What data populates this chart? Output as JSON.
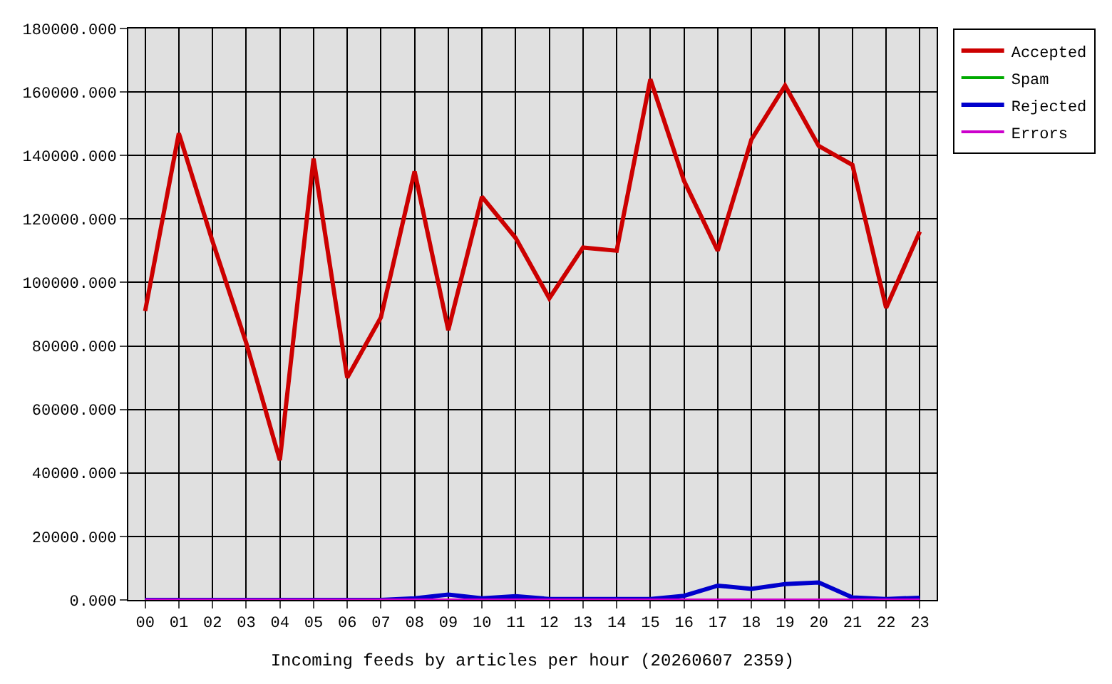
{
  "chart_data": {
    "type": "line",
    "xlabel": "Incoming feeds by articles per hour (20260607 2359)",
    "categories": [
      "00",
      "01",
      "02",
      "03",
      "04",
      "05",
      "06",
      "07",
      "08",
      "09",
      "10",
      "11",
      "12",
      "13",
      "14",
      "15",
      "16",
      "17",
      "18",
      "19",
      "20",
      "21",
      "22",
      "23"
    ],
    "series": [
      {
        "name": "Accepted",
        "color": "#cc0000",
        "values": [
          91000,
          147000,
          113000,
          81000,
          44000,
          139000,
          70000,
          89000,
          135000,
          85000,
          127000,
          114000,
          95000,
          111000,
          110000,
          164000,
          132000,
          110000,
          145000,
          162000,
          143000,
          137000,
          92000,
          116000
        ]
      },
      {
        "name": "Spam",
        "color": "#00aa00",
        "values": [
          null,
          null,
          null,
          null,
          null,
          null,
          null,
          null,
          null,
          null,
          null,
          null,
          null,
          null,
          null,
          null,
          null,
          null,
          null,
          null,
          null,
          null,
          null,
          null
        ]
      },
      {
        "name": "Rejected",
        "color": "#0000cc",
        "values": [
          0,
          0,
          0,
          0,
          0,
          0,
          0,
          0,
          500,
          1700,
          500,
          1200,
          300,
          300,
          300,
          300,
          1300,
          4500,
          3500,
          5000,
          5500,
          800,
          300,
          700
        ]
      },
      {
        "name": "Errors",
        "color": "#cc00cc",
        "values": [
          0,
          0,
          0,
          0,
          0,
          0,
          0,
          0,
          0,
          0,
          0,
          0,
          0,
          0,
          0,
          0,
          0,
          0,
          0,
          0,
          0,
          0,
          0,
          0
        ]
      }
    ],
    "ylim": [
      0,
      180000
    ],
    "yticks": [
      {
        "value": 0,
        "label": "0.000"
      },
      {
        "value": 20000,
        "label": "20000.000"
      },
      {
        "value": 40000,
        "label": "40000.000"
      },
      {
        "value": 60000,
        "label": "60000.000"
      },
      {
        "value": 80000,
        "label": "80000.000"
      },
      {
        "value": 100000,
        "label": "100000.000"
      },
      {
        "value": 120000,
        "label": "120000.000"
      },
      {
        "value": 140000,
        "label": "140000.000"
      },
      {
        "value": 160000,
        "label": "160000.000"
      },
      {
        "value": 180000,
        "label": "180000.000"
      }
    ],
    "grid": true,
    "legend": "top right",
    "marker": "none",
    "line_style": "solid"
  }
}
